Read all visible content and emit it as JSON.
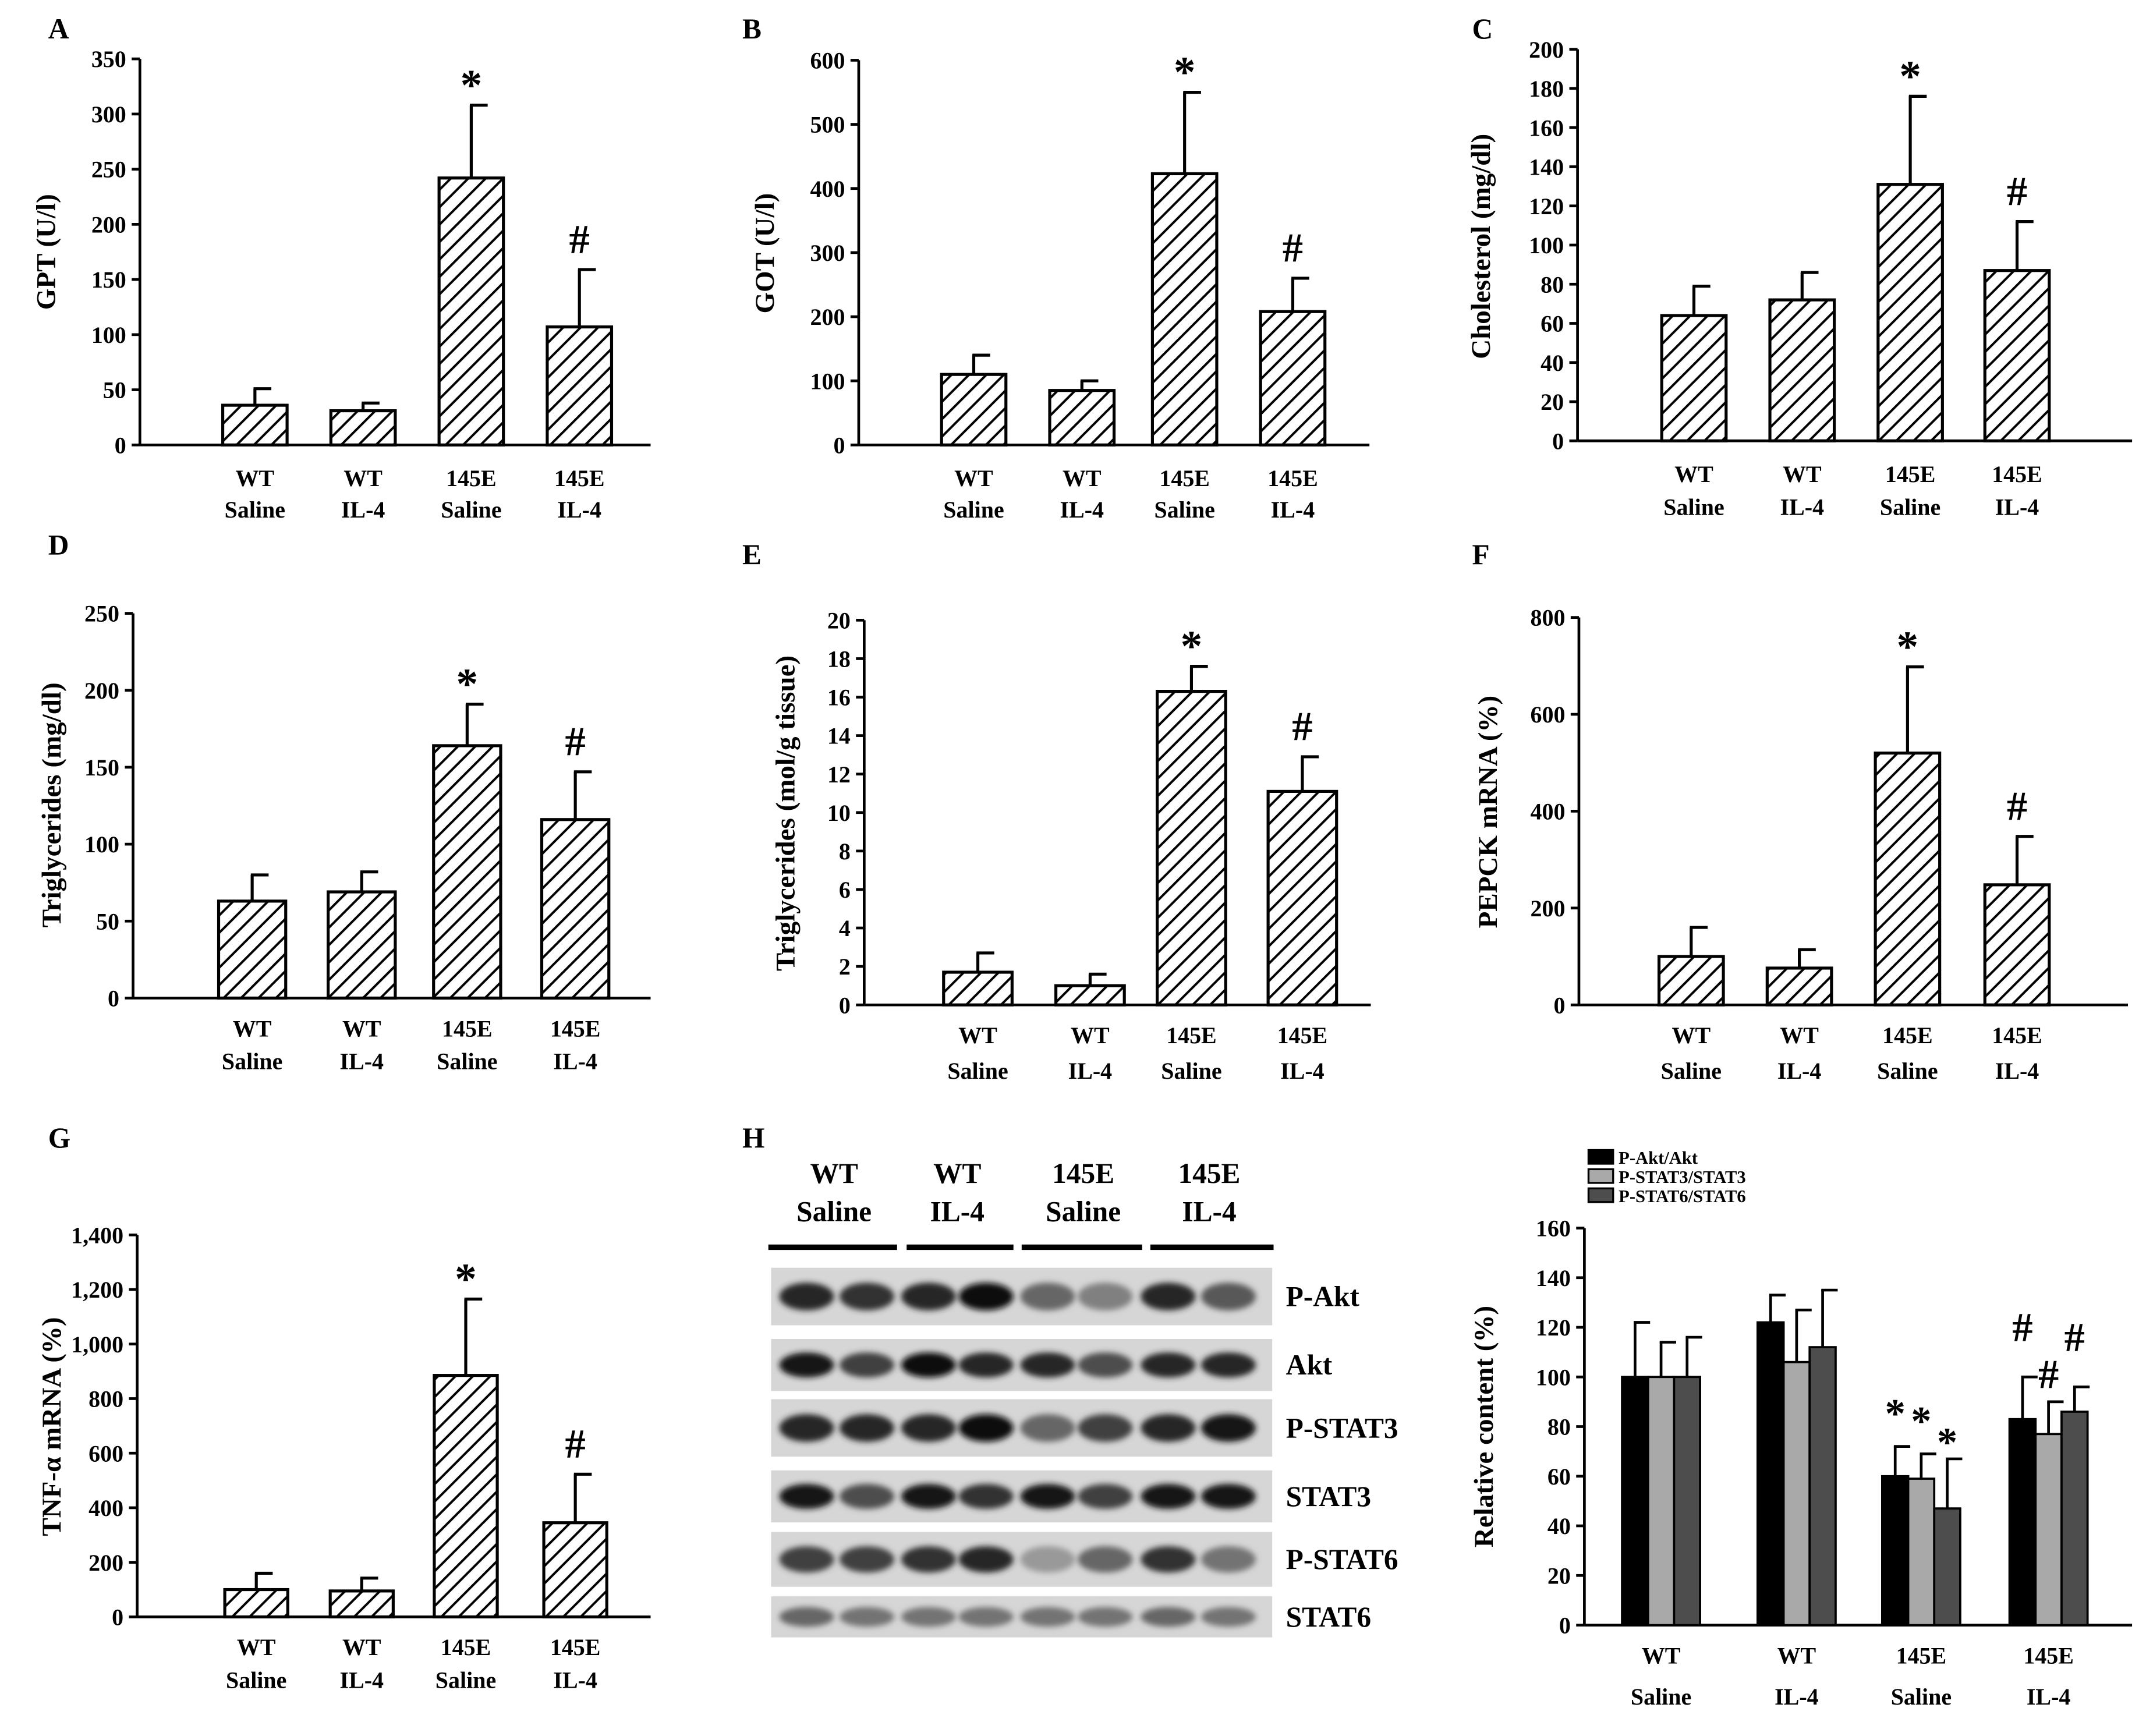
{
  "figure": {
    "hatch_color": "#000000",
    "background": "#ffffff"
  },
  "chart_data": [
    {
      "type": "bar",
      "panel": "A",
      "ylabel": "GPT (U/l)",
      "ylim": [
        0,
        350
      ],
      "ytick_values": [
        0,
        50,
        100,
        150,
        200,
        250,
        300,
        350
      ],
      "ytick_labels": [
        "0",
        "50",
        "100",
        "150",
        "200",
        "250",
        "300",
        "350"
      ],
      "categories": [
        [
          "WT",
          "Saline"
        ],
        [
          "WT",
          "IL-4"
        ],
        [
          "145E",
          "Saline"
        ],
        [
          "145E",
          "IL-4"
        ]
      ],
      "values": [
        36,
        31,
        242,
        107
      ],
      "errors": [
        15,
        7,
        66,
        52
      ],
      "annotations": [
        "",
        "",
        "*",
        "#"
      ]
    },
    {
      "type": "bar",
      "panel": "B",
      "ylabel": "GOT (U/l)",
      "ylim": [
        0,
        600
      ],
      "ytick_values": [
        0,
        100,
        200,
        300,
        400,
        500,
        600
      ],
      "ytick_labels": [
        "0",
        "100",
        "200",
        "300",
        "400",
        "500",
        "600"
      ],
      "categories": [
        [
          "WT",
          "Saline"
        ],
        [
          "WT",
          "IL-4"
        ],
        [
          "145E",
          "Saline"
        ],
        [
          "145E",
          "IL-4"
        ]
      ],
      "values": [
        110,
        85,
        423,
        208
      ],
      "errors": [
        30,
        15,
        127,
        52
      ],
      "annotations": [
        "",
        "",
        "*",
        "#"
      ]
    },
    {
      "type": "bar",
      "panel": "C",
      "ylabel": "Cholesterol (mg/dl)",
      "ylim": [
        0,
        200
      ],
      "ytick_values": [
        0,
        20,
        40,
        60,
        80,
        100,
        120,
        140,
        160,
        180,
        200
      ],
      "ytick_labels": [
        "0",
        "20",
        "40",
        "60",
        "80",
        "100",
        "120",
        "140",
        "160",
        "180",
        "200"
      ],
      "categories": [
        [
          "WT",
          "Saline"
        ],
        [
          "WT",
          "IL-4"
        ],
        [
          "145E",
          "Saline"
        ],
        [
          "145E",
          "IL-4"
        ]
      ],
      "values": [
        64,
        72,
        131,
        87
      ],
      "errors": [
        15,
        14,
        45,
        25
      ],
      "annotations": [
        "",
        "",
        "*",
        "#"
      ]
    },
    {
      "type": "bar",
      "panel": "D",
      "ylabel": "Triglycerides (mg/dl)",
      "ylim": [
        0,
        250
      ],
      "ytick_values": [
        0,
        50,
        100,
        150,
        200,
        250
      ],
      "ytick_labels": [
        "0",
        "50",
        "100",
        "150",
        "200",
        "250"
      ],
      "categories": [
        [
          "WT",
          "Saline"
        ],
        [
          "WT",
          "IL-4"
        ],
        [
          "145E",
          "Saline"
        ],
        [
          "145E",
          "IL-4"
        ]
      ],
      "values": [
        63,
        69,
        164,
        116
      ],
      "errors": [
        17,
        13,
        27,
        31
      ],
      "annotations": [
        "",
        "",
        "*",
        "#"
      ]
    },
    {
      "type": "bar",
      "panel": "E",
      "ylabel": "Triglycerides (mol/g tissue)",
      "ylim": [
        0,
        20
      ],
      "ytick_values": [
        0,
        2,
        4,
        6,
        8,
        10,
        12,
        14,
        16,
        18,
        20
      ],
      "ytick_labels": [
        "0",
        "2",
        "4",
        "6",
        "8",
        "10",
        "12",
        "14",
        "16",
        "18",
        "20"
      ],
      "categories": [
        [
          "WT",
          "Saline"
        ],
        [
          "WT",
          "IL-4"
        ],
        [
          "145E",
          "Saline"
        ],
        [
          "145E",
          "IL-4"
        ]
      ],
      "values": [
        1.7,
        1.0,
        16.3,
        11.1
      ],
      "errors": [
        1.0,
        0.6,
        1.3,
        1.8
      ],
      "annotations": [
        "",
        "",
        "*",
        "#"
      ]
    },
    {
      "type": "bar",
      "panel": "F",
      "ylabel": "PEPCK mRNA (%)",
      "ylim": [
        0,
        800
      ],
      "ytick_values": [
        0,
        200,
        400,
        600,
        800
      ],
      "ytick_labels": [
        "0",
        "200",
        "400",
        "600",
        "800"
      ],
      "categories": [
        [
          "WT",
          "Saline"
        ],
        [
          "WT",
          "IL-4"
        ],
        [
          "145E",
          "Saline"
        ],
        [
          "145E",
          "IL-4"
        ]
      ],
      "values": [
        100,
        76,
        520,
        248
      ],
      "errors": [
        60,
        38,
        178,
        100
      ],
      "annotations": [
        "",
        "",
        "*",
        "#"
      ]
    },
    {
      "type": "bar",
      "panel": "G",
      "ylabel": "TNF-α mRNA (%)",
      "ylim": [
        0,
        1400
      ],
      "ytick_values": [
        0,
        200,
        400,
        600,
        800,
        1000,
        1200,
        1400
      ],
      "ytick_labels": [
        "0",
        "200",
        "400",
        "600",
        "800",
        "1,000",
        "1,200",
        "1,400"
      ],
      "categories": [
        [
          "WT",
          "Saline"
        ],
        [
          "WT",
          "IL-4"
        ],
        [
          "145E",
          "Saline"
        ],
        [
          "145E",
          "IL-4"
        ]
      ],
      "values": [
        100,
        95,
        885,
        345
      ],
      "errors": [
        60,
        47,
        280,
        178
      ],
      "annotations": [
        "",
        "",
        "*",
        "#"
      ]
    },
    {
      "type": "bar",
      "panel": "H",
      "ylabel": "Relative content (%)",
      "ylim": [
        0,
        160
      ],
      "ytick_values": [
        0,
        20,
        40,
        60,
        80,
        100,
        120,
        140,
        160
      ],
      "ytick_labels": [
        "0",
        "20",
        "40",
        "60",
        "80",
        "100",
        "120",
        "140",
        "160"
      ],
      "categories": [
        [
          "WT",
          "Saline"
        ],
        [
          "WT",
          "IL-4"
        ],
        [
          "145E",
          "Saline"
        ],
        [
          "145E",
          "IL-4"
        ]
      ],
      "series": [
        {
          "name": "P-Akt/Akt",
          "color": "#000000",
          "values": [
            100,
            122,
            60,
            83
          ],
          "errors": [
            22,
            11,
            12,
            17
          ],
          "annotations": [
            "",
            "",
            "*",
            "#"
          ]
        },
        {
          "name": "P-STAT3/STAT3",
          "color": "#a9a9a9",
          "values": [
            100,
            106,
            59,
            77
          ],
          "errors": [
            14,
            21,
            10,
            13
          ],
          "annotations": [
            "",
            "",
            "*",
            "#"
          ]
        },
        {
          "name": "P-STAT6/STAT6",
          "color": "#4d4d4d",
          "values": [
            100,
            112,
            47,
            86
          ],
          "errors": [
            16,
            23,
            20,
            10
          ],
          "annotations": [
            "",
            "",
            "*",
            "#"
          ]
        }
      ],
      "legend_position": "top-left"
    }
  ],
  "blot": {
    "panel": "H",
    "groups": [
      [
        "WT",
        "Saline"
      ],
      [
        "WT",
        "IL-4"
      ],
      [
        "145E",
        "Saline"
      ],
      [
        "145E",
        "IL-4"
      ]
    ],
    "rows": [
      "P-Akt",
      "Akt",
      "P-STAT3",
      "STAT3",
      "P-STAT6",
      "STAT6"
    ]
  }
}
